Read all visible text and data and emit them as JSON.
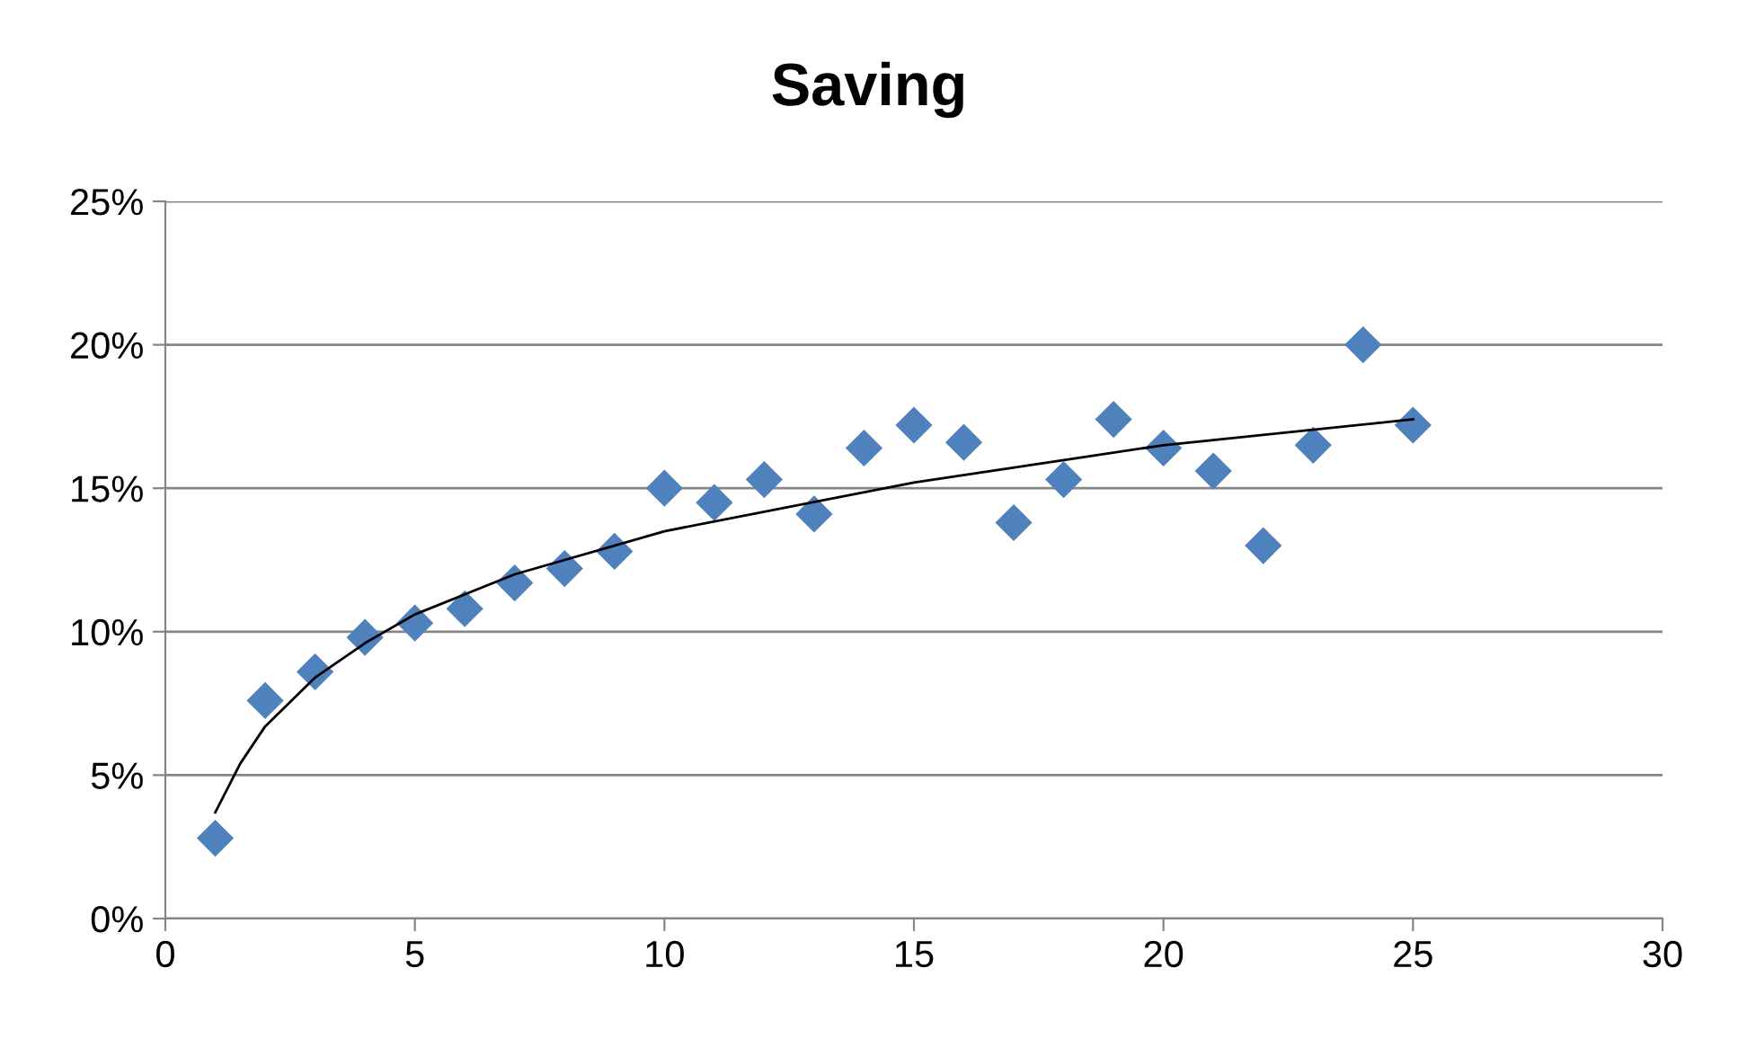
{
  "chart_data": {
    "type": "scatter",
    "title": "Saving",
    "series": [
      {
        "color": "#4f81bd",
        "marker": "diamond",
        "x": [
          1,
          2,
          3,
          4,
          5,
          6,
          7,
          8,
          9,
          10,
          11,
          12,
          13,
          14,
          15,
          16,
          17,
          18,
          19,
          20,
          21,
          22,
          23,
          24,
          25
        ],
        "values": [
          2.8,
          7.6,
          8.6,
          9.8,
          10.3,
          10.8,
          11.7,
          12.2,
          12.8,
          15.0,
          14.5,
          15.3,
          14.1,
          16.4,
          17.2,
          16.6,
          13.8,
          15.3,
          17.4,
          16.4,
          15.6,
          13.0,
          16.5,
          20.0,
          17.2
        ]
      },
      {
        "type": "line",
        "color": "#000000",
        "marker": "none",
        "x": [
          1,
          1.5,
          2,
          3,
          4,
          5,
          7,
          10,
          15,
          20,
          25
        ],
        "values": [
          3.7,
          5.4,
          6.7,
          8.4,
          9.6,
          10.6,
          12.0,
          13.5,
          15.2,
          16.5,
          17.4
        ]
      }
    ],
    "xlim": [
      0,
      30
    ],
    "xticks": [
      0,
      5,
      10,
      15,
      20,
      25,
      30
    ],
    "ylim": [
      0,
      25
    ],
    "yticks": [
      {
        "value": 0,
        "label": "0%"
      },
      {
        "value": 5,
        "label": "5%"
      },
      {
        "value": 10,
        "label": "10%"
      },
      {
        "value": 15,
        "label": "15%"
      },
      {
        "value": 20,
        "label": "20%"
      },
      {
        "value": 25,
        "label": "25%"
      }
    ],
    "grid": "y"
  }
}
